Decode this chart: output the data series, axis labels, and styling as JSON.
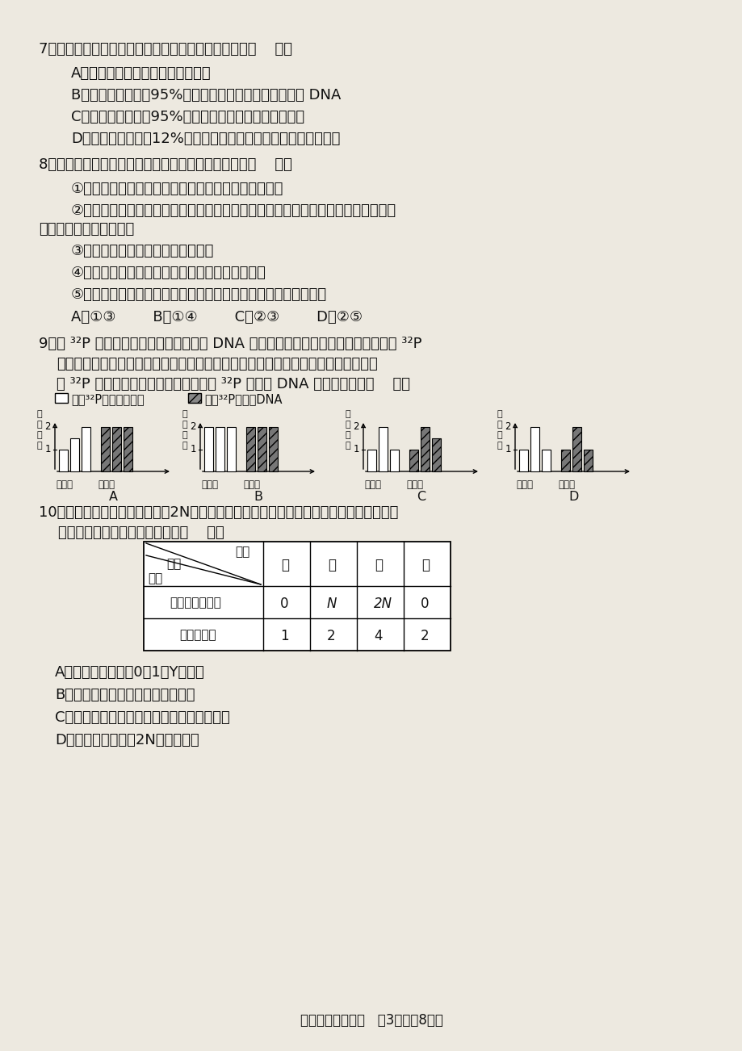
{
  "bg_color": "#ede9e0",
  "text_color": "#1a1a1a",
  "footer": "高三年级生物试卷   第3页（共8页）",
  "chart_data": [
    {
      "label": "A",
      "chrom": [
        1,
        1.5,
        2
      ],
      "dna": [
        2,
        2,
        2
      ]
    },
    {
      "label": "B",
      "chrom": [
        2,
        2,
        2
      ],
      "dna": [
        2,
        2,
        2
      ]
    },
    {
      "label": "C",
      "chrom": [
        1,
        2,
        1
      ],
      "dna": [
        1,
        2,
        1.5
      ]
    },
    {
      "label": "D",
      "chrom": [
        1,
        2,
        1
      ],
      "dna": [
        1,
        2,
        1
      ]
    }
  ]
}
